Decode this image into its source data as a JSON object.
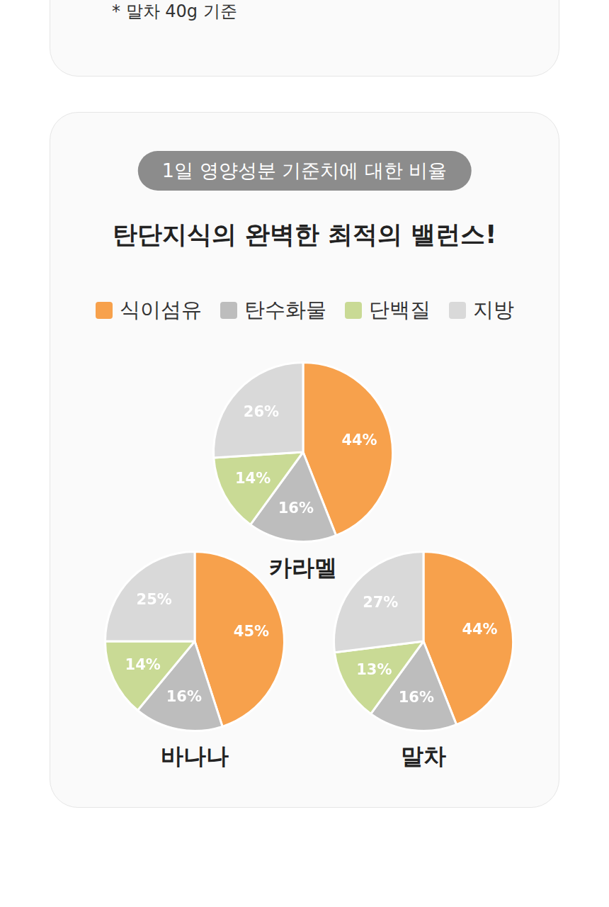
{
  "footnote": "* 말차 40g 기준",
  "badge": "1일 영양성분 기준치에 대한 비율",
  "title": "탄단지식의 완벽한 최적의 밸런스!",
  "chart_data": [
    {
      "type": "pie",
      "title": "카라멜",
      "categories": [
        "식이섬유",
        "탄수화물",
        "단백질",
        "지방"
      ],
      "values": [
        44,
        16,
        14,
        26
      ],
      "value_labels": [
        "44%",
        "16%",
        "14%",
        "26%"
      ],
      "colors": [
        "#f7a14c",
        "#bdbdbd",
        "#c9da95",
        "#d9d9d9"
      ],
      "data_labels": true,
      "legend": "top"
    },
    {
      "type": "pie",
      "title": "바나나",
      "categories": [
        "식이섬유",
        "탄수화물",
        "단백질",
        "지방"
      ],
      "values": [
        45,
        16,
        14,
        25
      ],
      "value_labels": [
        "45%",
        "16%",
        "14%",
        "25%"
      ],
      "colors": [
        "#f7a14c",
        "#bdbdbd",
        "#c9da95",
        "#d9d9d9"
      ],
      "data_labels": true,
      "legend": "top"
    },
    {
      "type": "pie",
      "title": "말차",
      "categories": [
        "식이섬유",
        "탄수화물",
        "단백질",
        "지방"
      ],
      "values": [
        44,
        16,
        13,
        27
      ],
      "value_labels": [
        "44%",
        "16%",
        "13%",
        "27%"
      ],
      "colors": [
        "#f7a14c",
        "#bdbdbd",
        "#c9da95",
        "#d9d9d9"
      ],
      "data_labels": true,
      "legend": "top"
    }
  ]
}
